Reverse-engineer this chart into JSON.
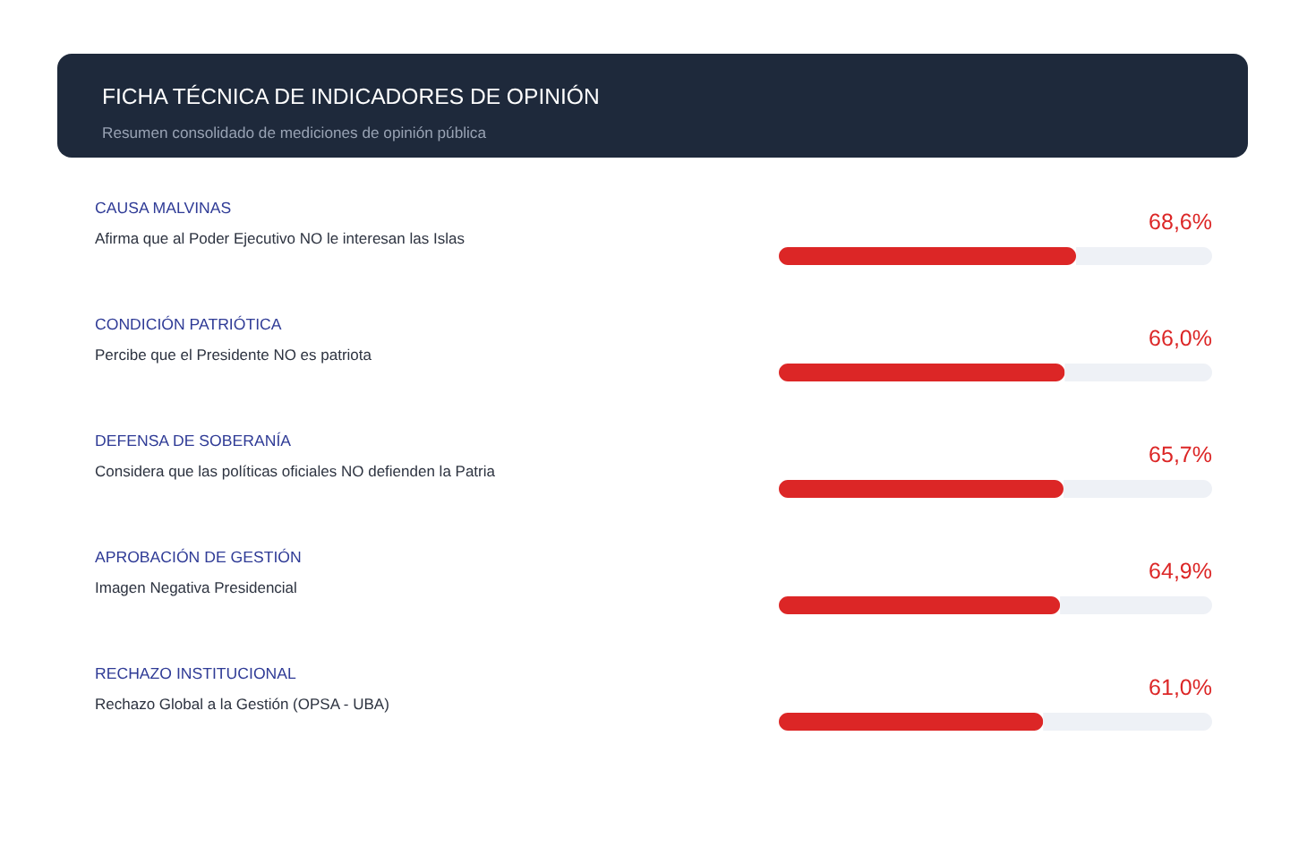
{
  "chart_data": {
    "type": "bar",
    "orientation": "horizontal",
    "title": "FICHA TÉCNICA DE INDICADORES DE OPINIÓN",
    "subtitle": "Resumen consolidado de mediciones de opinión pública",
    "categories": [
      "CAUSA MALVINAS",
      "CONDICIÓN PATRIÓTICA",
      "DEFENSA DE SOBERANÍA",
      "APROBACIÓN DE GESTIÓN",
      "RECHAZO INSTITUCIONAL"
    ],
    "values": [
      68.6,
      66.0,
      65.7,
      64.9,
      61.0
    ],
    "value_labels": [
      "68,6%",
      "66,0%",
      "65,7%",
      "64,9%",
      "61,0%"
    ],
    "color": "#dc2626",
    "xlim": [
      0,
      100
    ],
    "tick_labels": "y",
    "annotations": [
      "Afirma que al Poder Ejecutivo NO le interesan las Islas",
      "Percibe que el Presidente NO es patriota",
      "Considera que las políticas oficiales NO defienden la Patria",
      "Imagen Negativa Presidencial",
      "Rechazo Global a la Gestión (OPSA - UBA)"
    ]
  }
}
